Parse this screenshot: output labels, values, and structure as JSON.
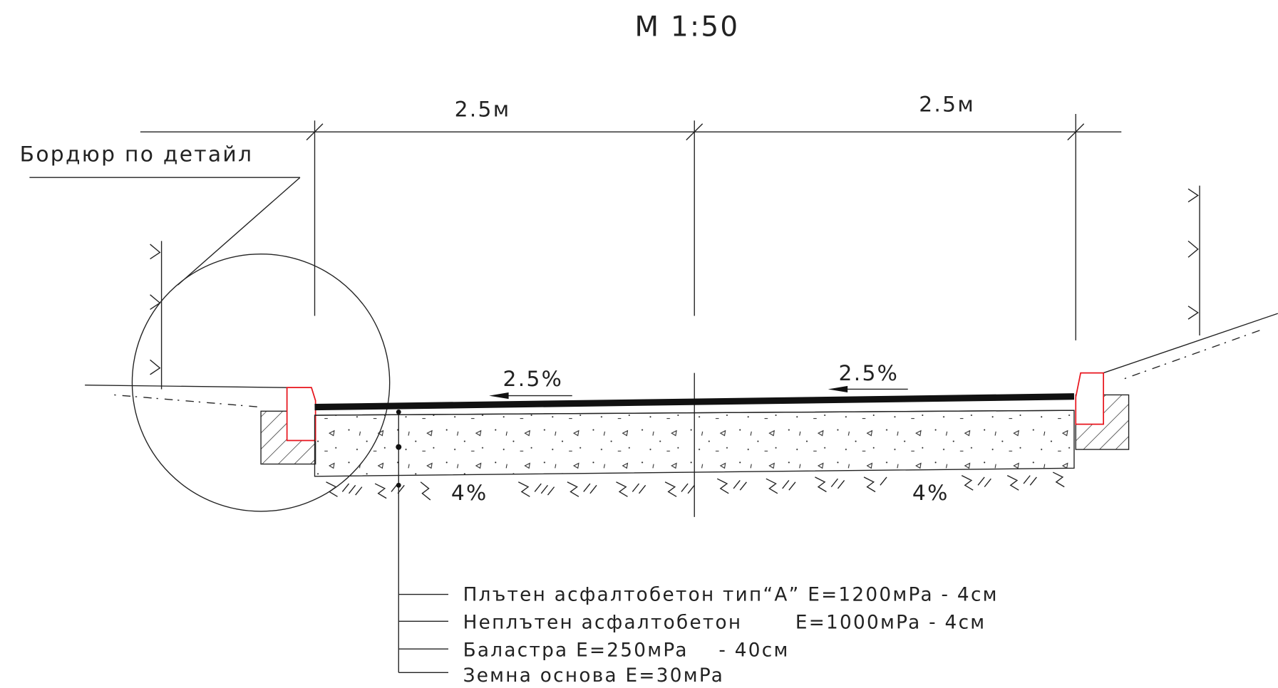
{
  "title": "М 1:50",
  "dimensions": [
    "2.5м",
    "2.5м"
  ],
  "callout": "Бордюр по детайл",
  "slopes": {
    "pavement": [
      "2.5%",
      "2.5%"
    ],
    "subgrade": [
      "4%",
      "4%"
    ]
  },
  "layers": [
    "Плътен асфалтобетон тип“А” E=1200мPa - 4см",
    "Неплътен асфалтобетон       E=1000мPa - 4см",
    "Баластра E=250мPa    - 40см",
    "Земна основа E=30мPa"
  ]
}
